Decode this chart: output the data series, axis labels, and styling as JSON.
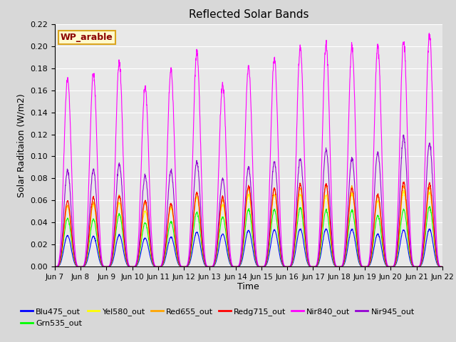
{
  "title": "Reflected Solar Bands",
  "xlabel": "Time",
  "ylabel": "Solar Raditaion (W/m2)",
  "ylim": [
    0.0,
    0.22
  ],
  "yticks": [
    0.0,
    0.02,
    0.04,
    0.06,
    0.08,
    0.1,
    0.12,
    0.14,
    0.16,
    0.18,
    0.2,
    0.22
  ],
  "annotation_text": "WP_arable",
  "annotation_color": "#8B0000",
  "annotation_bg": "#FFFACD",
  "annotation_border": "#DAA520",
  "series_names": [
    "Blu475_out",
    "Grn535_out",
    "Yel580_out",
    "Red655_out",
    "Redg715_out",
    "Nir840_out",
    "Nir945_out"
  ],
  "series_colors": [
    "#0000FF",
    "#00FF00",
    "#FFFF00",
    "#FFA500",
    "#FF0000",
    "#FF00FF",
    "#9400D3"
  ],
  "n_days": 15,
  "points_per_day": 144,
  "start_day": 7,
  "fig_facecolor": "#D8D8D8",
  "axes_facecolor": "#E8E8E8",
  "grid_color": "#FFFFFF",
  "peak_values": [
    0.034,
    0.053,
    0.067,
    0.072,
    0.075,
    0.21,
    0.105
  ],
  "day_peak_scale": [
    0.8,
    0.82,
    0.87,
    0.78,
    0.79,
    0.91,
    0.85,
    0.96,
    0.97,
    1.0,
    0.99,
    0.97,
    0.9,
    1.0,
    1.01
  ],
  "nir840_peaks": [
    0.17,
    0.175,
    0.185,
    0.163,
    0.178,
    0.195,
    0.165,
    0.182,
    0.189,
    0.199,
    0.201,
    0.199,
    0.2,
    0.205,
    0.21
  ],
  "nir945_peaks": [
    0.087,
    0.088,
    0.093,
    0.082,
    0.087,
    0.095,
    0.08,
    0.09,
    0.095,
    0.098,
    0.106,
    0.098,
    0.104,
    0.118,
    0.112
  ],
  "lw": 0.8
}
